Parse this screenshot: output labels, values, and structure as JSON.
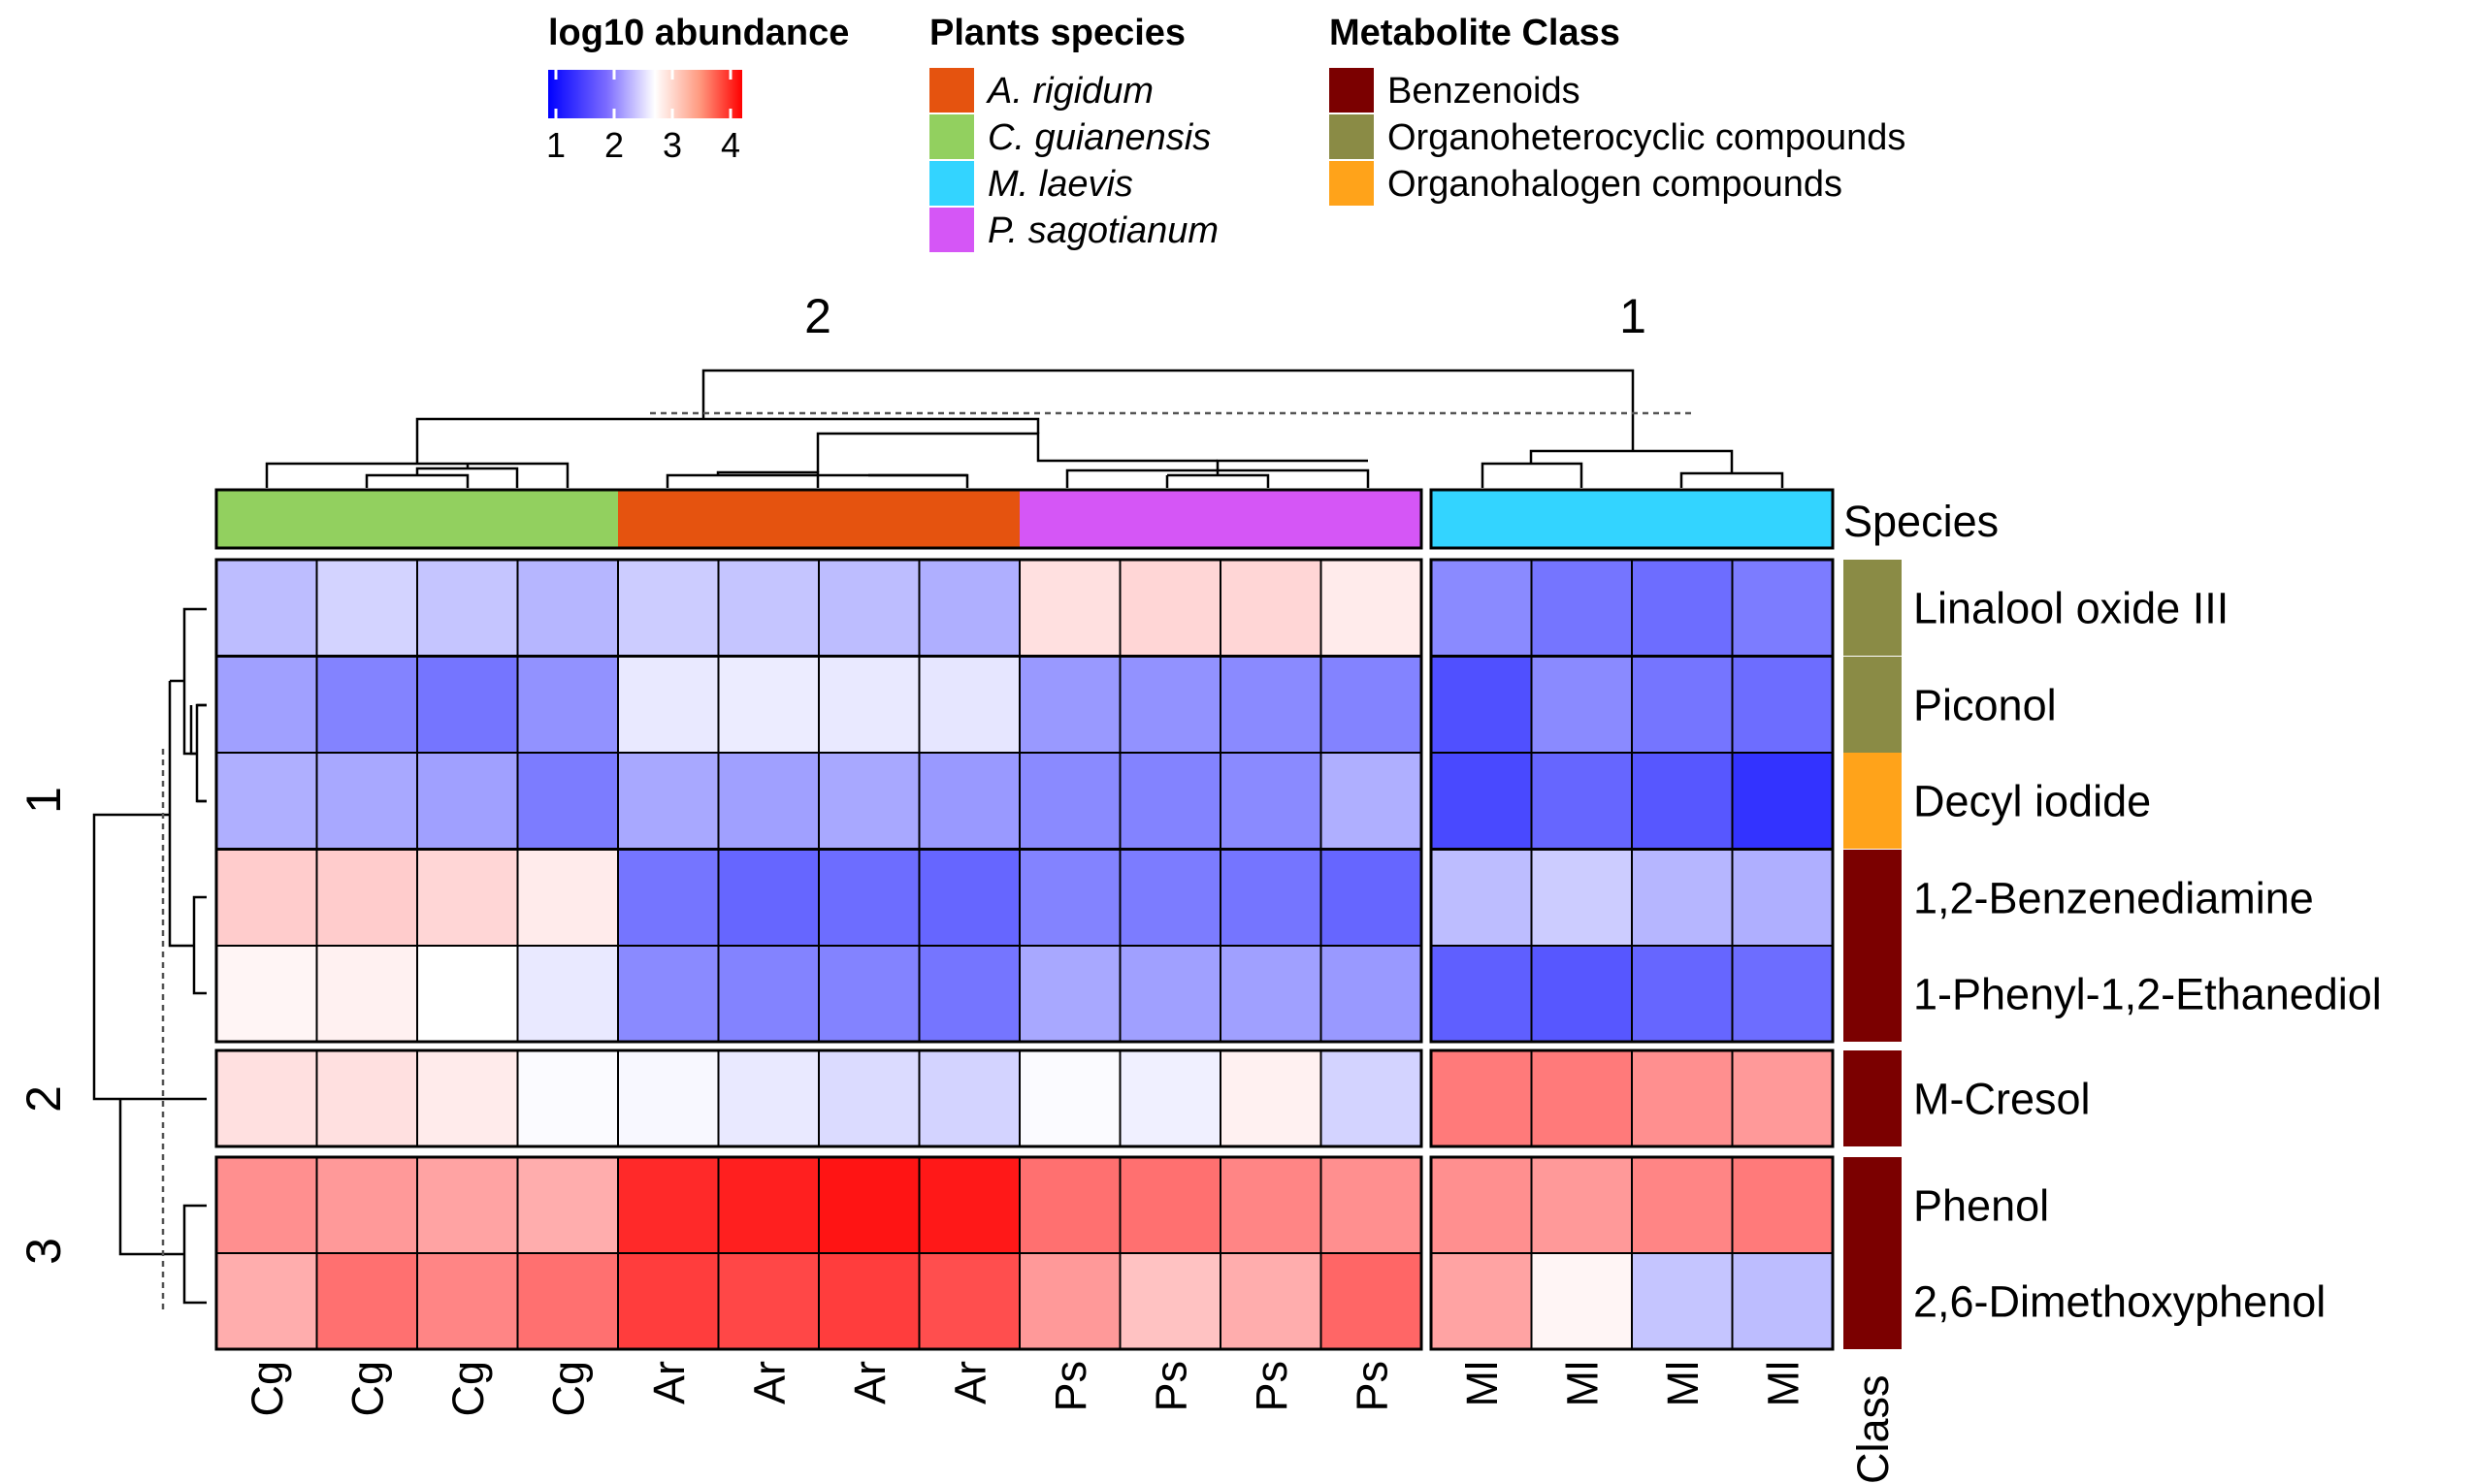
{
  "legend": {
    "abundance": {
      "title": "log10 abundance",
      "ticks": [
        "1",
        "2",
        "3",
        "4"
      ]
    },
    "species": {
      "title": "Plants species",
      "items": [
        {
          "label": "A. rigidum",
          "color": "#E5530F"
        },
        {
          "label": "C. guianensis",
          "color": "#92D05F"
        },
        {
          "label": "M. laevis",
          "color": "#33D4FF"
        },
        {
          "label": "P. sagotianum",
          "color": "#D556F6"
        }
      ]
    },
    "metabolite_class": {
      "title": "Metabolite Class",
      "items": [
        {
          "label": "Benzenoids",
          "color": "#7B0000"
        },
        {
          "label": "Organoheterocyclic compounds",
          "color": "#8A8B45"
        },
        {
          "label": "Organohalogen compounds",
          "color": "#FFA31A"
        }
      ]
    }
  },
  "labels": {
    "species_annotation": "Species",
    "class_annotation": "Class",
    "column_split_2": "2",
    "column_split_1": "1",
    "row_split_1": "1",
    "row_split_2": "2",
    "row_split_3": "3"
  },
  "chart_data": {
    "type": "heatmap",
    "color_scale": {
      "name": "log10 abundance",
      "range": [
        1,
        4
      ],
      "low": "#0000FF",
      "mid": "#FFFFFF",
      "mid_value": 2.75,
      "high": "#FF0000"
    },
    "columns": [
      "Cg",
      "Cg",
      "Cg",
      "Cg",
      "Ar",
      "Ar",
      "Ar",
      "Ar",
      "Ps",
      "Ps",
      "Ps",
      "Ps",
      "Ml",
      "Ml",
      "Ml",
      "Ml"
    ],
    "column_species": [
      "C. guianensis",
      "C. guianensis",
      "C. guianensis",
      "C. guianensis",
      "A. rigidum",
      "A. rigidum",
      "A. rigidum",
      "A. rigidum",
      "P. sagotianum",
      "P. sagotianum",
      "P. sagotianum",
      "P. sagotianum",
      "M. laevis",
      "M. laevis",
      "M. laevis",
      "M. laevis"
    ],
    "column_clusters": [
      2,
      2,
      2,
      2,
      2,
      2,
      2,
      2,
      2,
      2,
      2,
      2,
      1,
      1,
      1,
      1
    ],
    "rows": [
      "Linalool oxide III",
      "Piconol",
      "Decyl iodide",
      "1,2-Benzenediamine",
      "1-Phenyl-1,2-Ethanediol",
      "M-Cresol",
      "Phenol",
      "2,6-Dimethoxyphenol"
    ],
    "row_classes": [
      "Organoheterocyclic compounds",
      "Organoheterocyclic compounds",
      "Organohalogen compounds",
      "Benzenoids",
      "Benzenoids",
      "Benzenoids",
      "Benzenoids",
      "Benzenoids"
    ],
    "row_clusters": [
      1,
      1,
      1,
      1,
      1,
      2,
      3,
      3
    ],
    "values": [
      [
        2.3,
        2.45,
        2.35,
        2.25,
        2.4,
        2.35,
        2.3,
        2.2,
        2.9,
        2.95,
        2.95,
        2.85,
        1.95,
        1.8,
        1.75,
        1.85
      ],
      [
        2.1,
        1.9,
        1.8,
        2.0,
        2.6,
        2.62,
        2.6,
        2.58,
        2.05,
        2.0,
        1.95,
        1.9,
        1.55,
        1.95,
        1.8,
        1.75
      ],
      [
        2.2,
        2.15,
        2.1,
        1.85,
        2.15,
        2.1,
        2.15,
        2.05,
        1.95,
        1.9,
        1.95,
        2.2,
        1.5,
        1.7,
        1.6,
        1.35
      ],
      [
        3.0,
        3.0,
        2.95,
        2.85,
        1.8,
        1.7,
        1.75,
        1.7,
        1.9,
        1.85,
        1.8,
        1.7,
        2.3,
        2.4,
        2.25,
        2.2
      ],
      [
        2.8,
        2.82,
        2.75,
        2.6,
        1.95,
        1.9,
        1.9,
        1.8,
        2.15,
        2.1,
        2.1,
        2.05,
        1.65,
        1.6,
        1.7,
        1.75
      ],
      [
        2.9,
        2.9,
        2.85,
        2.72,
        2.7,
        2.6,
        2.5,
        2.45,
        2.72,
        2.65,
        2.82,
        2.45,
        3.4,
        3.4,
        3.3,
        3.25
      ],
      [
        3.3,
        3.25,
        3.2,
        3.15,
        3.8,
        3.85,
        3.9,
        3.88,
        3.45,
        3.45,
        3.35,
        3.3,
        3.3,
        3.25,
        3.35,
        3.4
      ],
      [
        3.15,
        3.45,
        3.35,
        3.45,
        3.7,
        3.65,
        3.7,
        3.62,
        3.25,
        3.05,
        3.15,
        3.5,
        3.2,
        2.8,
        2.35,
        2.3
      ]
    ]
  }
}
